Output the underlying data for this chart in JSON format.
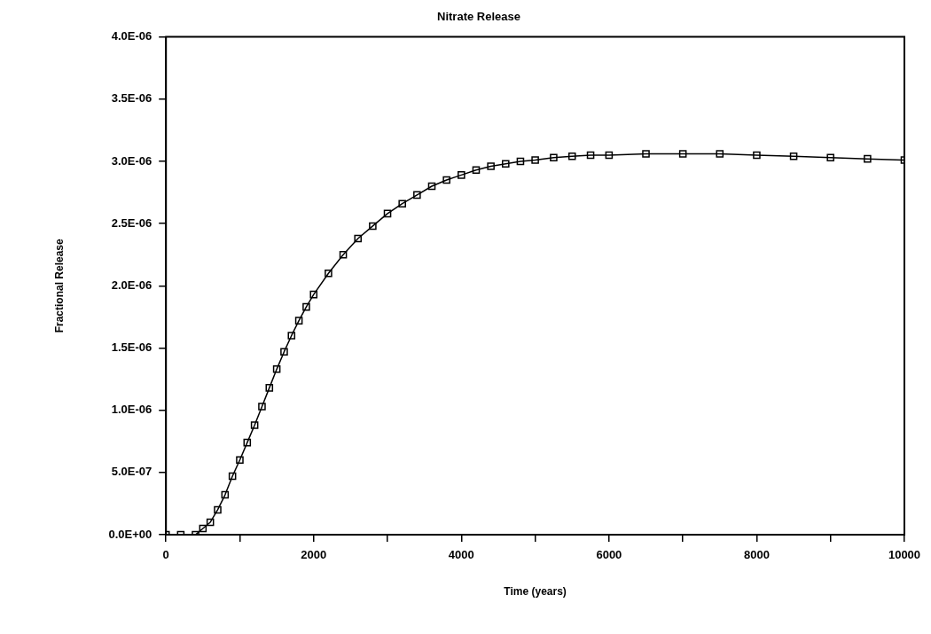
{
  "chart_data": {
    "type": "line",
    "title": "Nitrate Release",
    "xlabel": "Time (years)",
    "ylabel": "Fractional Release",
    "x": [
      0,
      200,
      400,
      500,
      600,
      700,
      800,
      900,
      1000,
      1100,
      1200,
      1300,
      1400,
      1500,
      1600,
      1700,
      1800,
      1900,
      2000,
      2200,
      2400,
      2600,
      2800,
      3000,
      3200,
      3400,
      3600,
      3800,
      4000,
      4200,
      4400,
      4600,
      4800,
      5000,
      5250,
      5500,
      5750,
      6000,
      6500,
      7000,
      7500,
      8000,
      8500,
      9000,
      9500,
      10000
    ],
    "series": [
      {
        "color": "#000000",
        "values": [
          0,
          0,
          0,
          5e-08,
          1e-07,
          2e-07,
          3.2e-07,
          4.7e-07,
          6e-07,
          7.4e-07,
          8.8e-07,
          1.03e-06,
          1.18e-06,
          1.33e-06,
          1.47e-06,
          1.6e-06,
          1.72e-06,
          1.83e-06,
          1.93e-06,
          2.1e-06,
          2.25e-06,
          2.38e-06,
          2.48e-06,
          2.58e-06,
          2.66e-06,
          2.73e-06,
          2.8e-06,
          2.85e-06,
          2.89e-06,
          2.93e-06,
          2.96e-06,
          2.98e-06,
          3e-06,
          3.01e-06,
          3.03e-06,
          3.04e-06,
          3.05e-06,
          3.05e-06,
          3.06e-06,
          3.06e-06,
          3.06e-06,
          3.05e-06,
          3.04e-06,
          3.03e-06,
          3.02e-06,
          3.01e-06
        ]
      }
    ],
    "xlim": [
      0,
      10000
    ],
    "xticks": [
      0,
      {
        "value": 1000,
        "label": null
      },
      2000,
      {
        "value": 3000,
        "label": null
      },
      4000,
      {
        "value": 5000,
        "label": null
      },
      6000,
      {
        "value": 7000,
        "label": null
      },
      8000,
      {
        "value": 9000,
        "label": null
      },
      10000
    ],
    "ylim": [
      0,
      4e-06
    ],
    "yticks": [
      {
        "value": 0,
        "label": "0.0E+00"
      },
      {
        "value": 5e-07,
        "label": "5.0E-07"
      },
      {
        "value": 1e-06,
        "label": "1.0E-06"
      },
      {
        "value": 1.5e-06,
        "label": "1.5E-06"
      },
      {
        "value": 2e-06,
        "label": "2.0E-06"
      },
      {
        "value": 2.5e-06,
        "label": "2.5E-06"
      },
      {
        "value": 3e-06,
        "label": "3.0E-06"
      },
      {
        "value": 3.5e-06,
        "label": "3.5E-06"
      },
      {
        "value": 4e-06,
        "label": "4.0E-06"
      }
    ],
    "grid": false,
    "legend": false,
    "marker": "square",
    "line_style": "solid"
  }
}
